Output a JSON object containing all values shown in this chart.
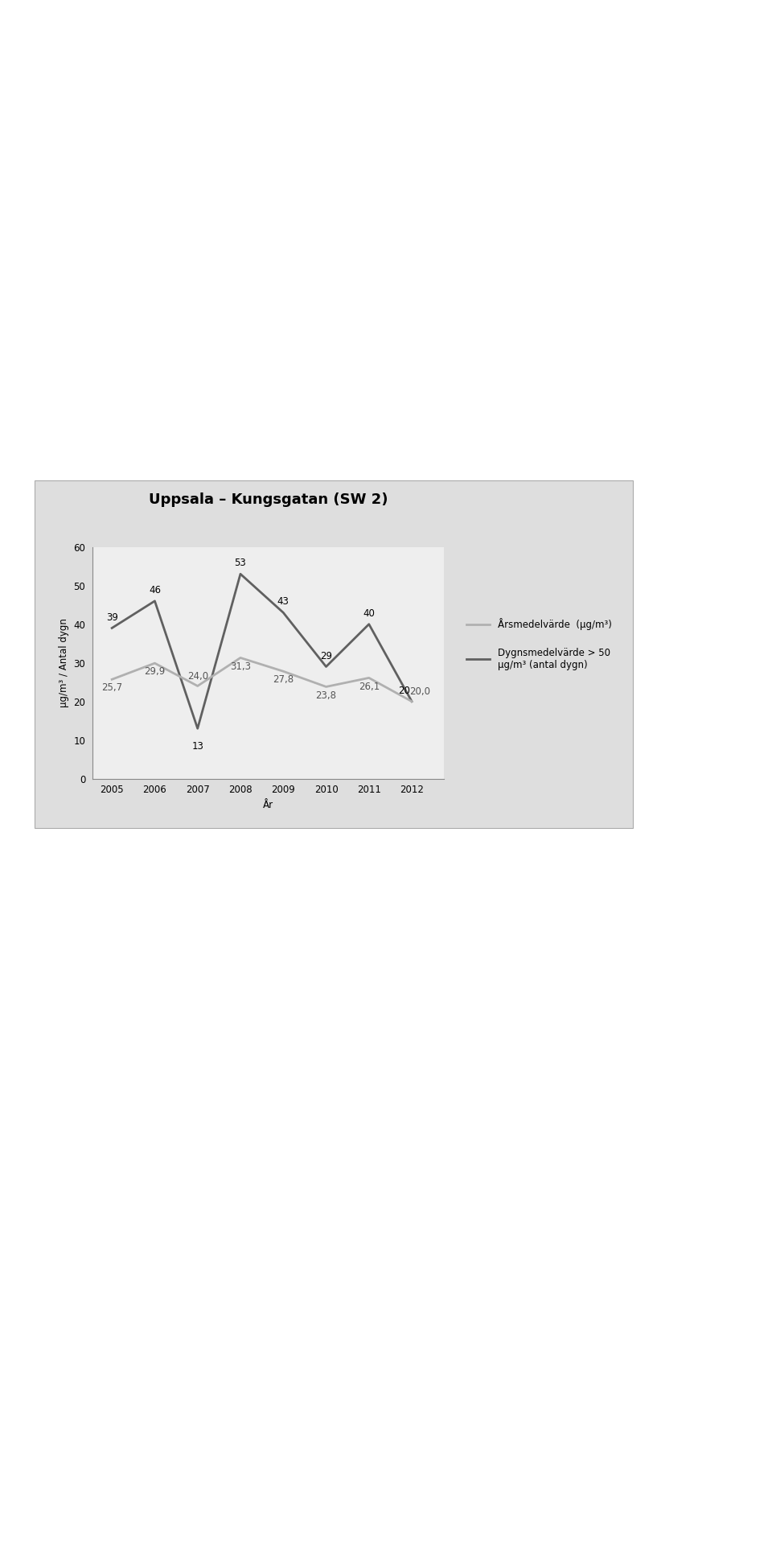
{
  "title": "Uppsala – Kungsgatan (SW 2)",
  "years": [
    2005,
    2006,
    2007,
    2008,
    2009,
    2010,
    2011,
    2012
  ],
  "arsmedel": [
    25.7,
    29.9,
    24.0,
    31.3,
    27.8,
    23.8,
    26.1,
    20.0
  ],
  "dygnsmedel": [
    39,
    46,
    13,
    53,
    43,
    29,
    40,
    20
  ],
  "arsmedel_labels": [
    "25,7",
    "29,9",
    "24,0",
    "31,3",
    "27,8",
    "23,8",
    "26,1",
    "20,0"
  ],
  "dygnsmedel_labels": [
    "39",
    "46",
    "13",
    "53",
    "43",
    "29",
    "40",
    "20"
  ],
  "arsmedel_color": "#b0b0b0",
  "dygnsmedel_color": "#606060",
  "ylabel": "μg/m³ / Antal dygn",
  "xlabel": "År",
  "ylim": [
    0,
    60
  ],
  "yticks": [
    0,
    10,
    20,
    30,
    40,
    50,
    60
  ],
  "legend_arsmedel": "Årsmedelvärde  (μg/m³)",
  "legend_dygnsmedel": "Dygnsmedelvärde > 50\nμg/m³ (antal dygn)",
  "bg_color": "#dedede",
  "plot_bg_color": "#eeeeee",
  "title_fontsize": 13,
  "label_fontsize": 8.5,
  "tick_fontsize": 8.5,
  "legend_fontsize": 8.5,
  "linewidth": 2.0
}
